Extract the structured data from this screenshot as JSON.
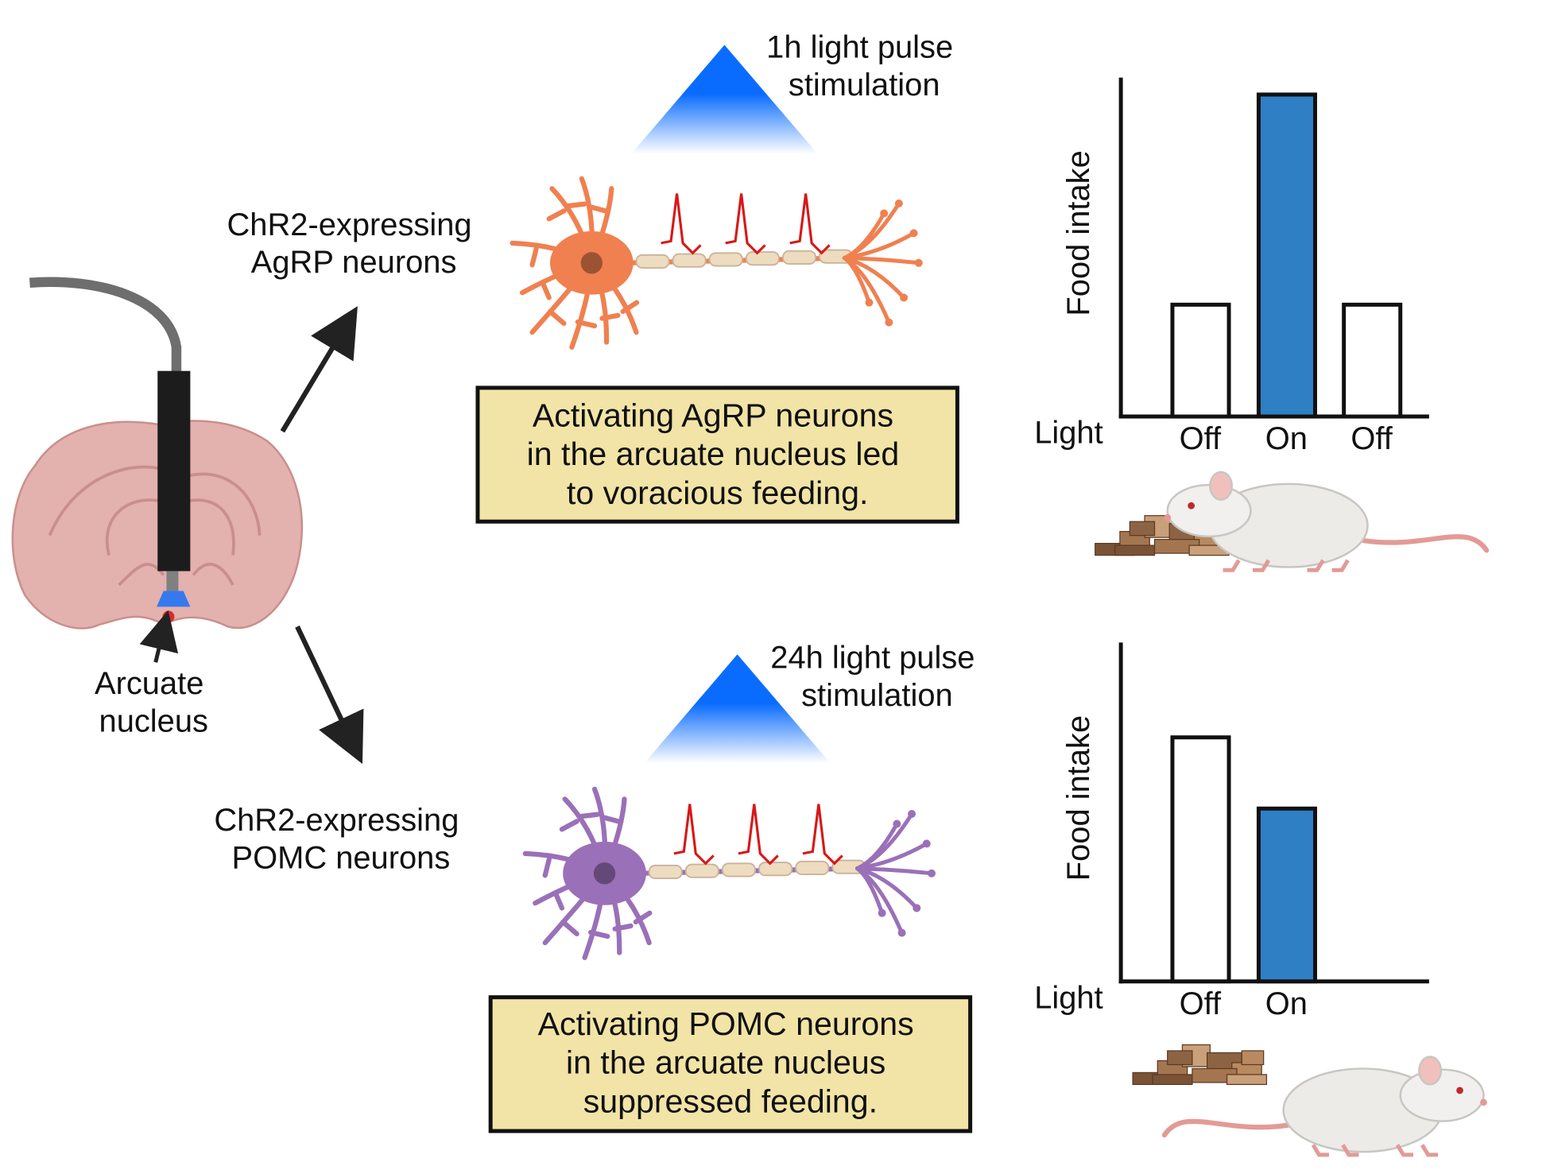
{
  "colors": {
    "light_blue": "#0a6cff",
    "bar_on": "#2f7fc4",
    "box_fill": "#f2e4a6",
    "agrp_neuron": "#f08050",
    "pomc_neuron": "#9a70b8",
    "spike": "#d81818",
    "brain": "#e3b1ae"
  },
  "brain": {
    "label_lines": [
      "Arcuate",
      "nucleus"
    ]
  },
  "top": {
    "stim_lines": [
      "1h light pulse",
      "stimulation"
    ],
    "neuron_lines": [
      "ChR2-expressing",
      "AgRP neurons"
    ],
    "box_lines": [
      "Activating AgRP neurons",
      "in the arcuate nucleus led",
      "to voracious feeding."
    ]
  },
  "bottom": {
    "stim_lines": [
      "24h light pulse",
      "stimulation"
    ],
    "neuron_lines": [
      "ChR2-expressing",
      "POMC neurons"
    ],
    "box_lines": [
      "Activating POMC neurons",
      "in the arcuate nucleus",
      "suppressed feeding."
    ]
  },
  "chart_data": [
    {
      "type": "bar",
      "ylabel": "Food intake",
      "row_label": "Light",
      "categories": [
        "Off",
        "On",
        "Off"
      ],
      "values": [
        0.33,
        0.95,
        0.33
      ],
      "ylim": [
        0,
        1
      ],
      "bar_colors": [
        "#ffffff",
        "#2f7fc4",
        "#ffffff"
      ],
      "grid": false
    },
    {
      "type": "bar",
      "ylabel": "Food intake",
      "row_label": "Light",
      "categories": [
        "Off",
        "On"
      ],
      "values": [
        0.72,
        0.51
      ],
      "ylim": [
        0,
        1
      ],
      "bar_colors": [
        "#ffffff",
        "#2f7fc4"
      ],
      "grid": false
    }
  ]
}
